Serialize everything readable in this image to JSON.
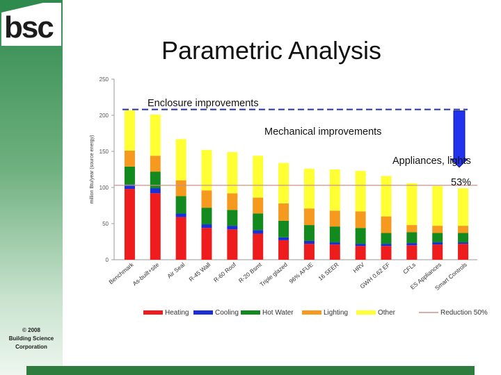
{
  "logo": {
    "text": "bsc"
  },
  "title": "Parametric Analysis",
  "copyright": {
    "line1": "© 2008",
    "line2": "Building Science",
    "line3": "Corporation"
  },
  "colors": {
    "heating": "#ee1c1c",
    "cooling": "#1a2fd6",
    "hot_water": "#128a1e",
    "lighting": "#f59a1f",
    "other": "#ffff33",
    "reduction_line": "#c8928c",
    "dashed_line": "#2233aa",
    "arrow": "#2233ee"
  },
  "chart_data": {
    "type": "bar",
    "stacked": true,
    "ylabel": "million Btu/year (source energy)",
    "ylim": [
      0,
      250
    ],
    "yticks": [
      0,
      50,
      100,
      150,
      200,
      250
    ],
    "categories": [
      "Benchmark",
      "As-built+site",
      "Air Seal",
      "R-45 Wall",
      "R-60 Roof",
      "R-20 Bsmt",
      "Triple glazed",
      "96% AFUE",
      "16 SEER",
      "HRV",
      "GWH 0.62 EF",
      "CFLs",
      "ES Appliances",
      "Smart Controls"
    ],
    "series": [
      {
        "name": "Heating",
        "values": [
          98,
          92,
          59,
          44,
          42,
          36,
          27,
          22,
          21,
          19,
          19,
          20,
          21,
          22
        ]
      },
      {
        "name": "Cooling",
        "values": [
          6,
          7,
          5,
          5,
          5,
          5,
          4,
          4,
          3,
          3,
          3,
          3,
          3,
          2
        ]
      },
      {
        "name": "Hot Water",
        "values": [
          25,
          23,
          24,
          23,
          22,
          23,
          23,
          22,
          22,
          22,
          15,
          15,
          13,
          13
        ]
      },
      {
        "name": "Lighting",
        "values": [
          22,
          22,
          22,
          24,
          23,
          22,
          24,
          23,
          22,
          23,
          23,
          10,
          10,
          10
        ]
      },
      {
        "name": "Other",
        "values": [
          56,
          57,
          57,
          56,
          57,
          58,
          56,
          55,
          57,
          56,
          56,
          58,
          55,
          52
        ]
      }
    ],
    "reference_lines": [
      {
        "name": "Reduction 50%",
        "value": 103
      },
      {
        "value": 208
      }
    ],
    "annotations": {
      "enclosure": "Enclosure improvements",
      "mechanical": "Mechanical improvements",
      "appliances": "Appliances, lights",
      "percent": "53%"
    },
    "legend_position": "bottom",
    "grid": false
  }
}
